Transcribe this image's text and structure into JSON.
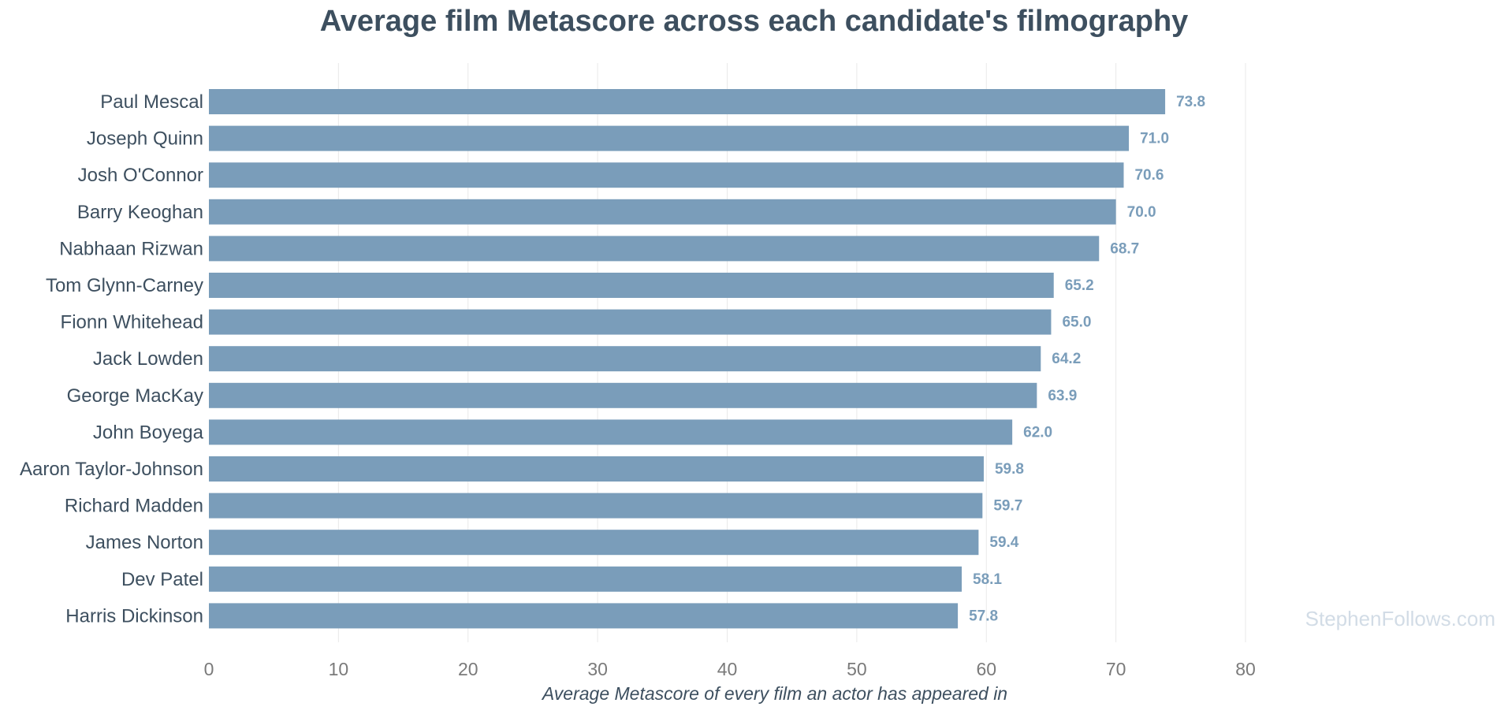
{
  "chart_data": {
    "type": "bar",
    "orientation": "horizontal",
    "title": "Average film Metascore across each candidate's filmography",
    "xlabel": "Average Metascore of every film an actor has appeared in",
    "ylabel": "",
    "xlim": [
      0,
      80
    ],
    "x_ticks": [
      0,
      10,
      20,
      30,
      40,
      50,
      60,
      70,
      80
    ],
    "grid": "vertical",
    "bar_color": "#7a9dba",
    "categories": [
      "Paul Mescal",
      "Joseph Quinn",
      "Josh O'Connor",
      "Barry Keoghan",
      "Nabhaan Rizwan",
      "Tom Glynn-Carney",
      "Fionn Whitehead",
      "Jack Lowden",
      "George MacKay",
      "John Boyega",
      "Aaron Taylor-Johnson",
      "Richard Madden",
      "James Norton",
      "Dev Patel",
      "Harris Dickinson"
    ],
    "values": [
      73.8,
      71.0,
      70.6,
      70.0,
      68.7,
      65.2,
      65.0,
      64.2,
      63.9,
      62.0,
      59.8,
      59.7,
      59.4,
      58.1,
      57.8
    ],
    "value_labels": [
      "73.8",
      "71.0",
      "70.6",
      "70.0",
      "68.7",
      "65.2",
      "65.0",
      "64.2",
      "63.9",
      "62.0",
      "59.8",
      "59.7",
      "59.4",
      "58.1",
      "57.8"
    ]
  },
  "watermark": "StephenFollows.com"
}
